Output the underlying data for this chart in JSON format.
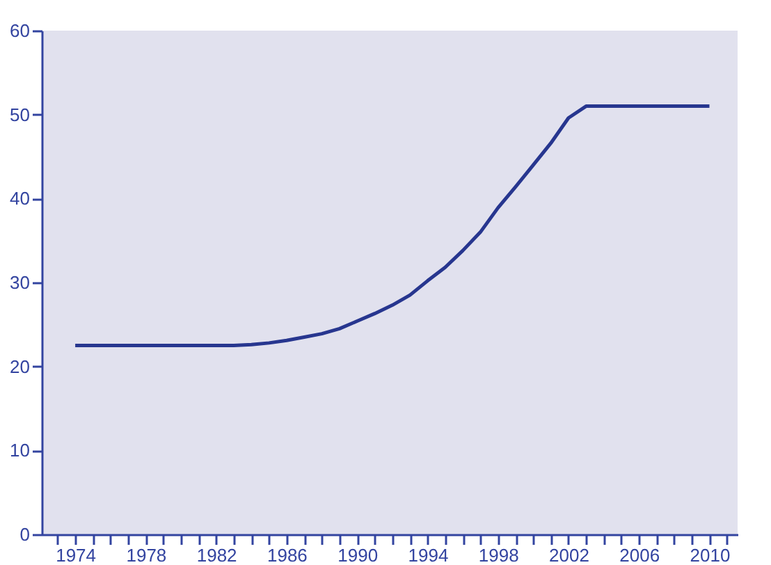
{
  "chart_data": {
    "type": "line",
    "x": [
      1974,
      1975,
      1976,
      1977,
      1978,
      1979,
      1980,
      1981,
      1982,
      1983,
      1984,
      1985,
      1986,
      1987,
      1988,
      1989,
      1990,
      1991,
      1992,
      1993,
      1994,
      1995,
      1996,
      1997,
      1998,
      1999,
      2000,
      2001,
      2002,
      2003,
      2004,
      2005,
      2006,
      2007,
      2008,
      2009,
      2010
    ],
    "series": [
      {
        "color": "#27368f",
        "values": [
          22.5,
          22.5,
          22.5,
          22.5,
          22.5,
          22.5,
          22.5,
          22.5,
          22.5,
          22.5,
          22.6,
          22.8,
          23.1,
          23.5,
          23.9,
          24.5,
          25.4,
          26.3,
          27.3,
          28.5,
          30.2,
          31.8,
          33.8,
          36.0,
          38.9,
          41.4,
          44.0,
          46.6,
          49.6,
          51.0,
          51.0,
          51.0,
          51.0,
          51.0,
          51.0,
          51.0,
          51.0
        ]
      }
    ],
    "xlim": [
      1972.1,
      2011.6
    ],
    "xticks": [
      {
        "value": 1973,
        "label": null
      },
      1974,
      {
        "value": 1975,
        "label": null
      },
      {
        "value": 1976,
        "label": null
      },
      {
        "value": 1977,
        "label": null
      },
      1978,
      {
        "value": 1979,
        "label": null
      },
      {
        "value": 1980,
        "label": null
      },
      {
        "value": 1981,
        "label": null
      },
      1982,
      {
        "value": 1983,
        "label": null
      },
      {
        "value": 1984,
        "label": null
      },
      {
        "value": 1985,
        "label": null
      },
      1986,
      {
        "value": 1987,
        "label": null
      },
      {
        "value": 1988,
        "label": null
      },
      {
        "value": 1989,
        "label": null
      },
      1990,
      {
        "value": 1991,
        "label": null
      },
      {
        "value": 1992,
        "label": null
      },
      {
        "value": 1993,
        "label": null
      },
      1994,
      {
        "value": 1995,
        "label": null
      },
      {
        "value": 1996,
        "label": null
      },
      {
        "value": 1997,
        "label": null
      },
      1998,
      {
        "value": 1999,
        "label": null
      },
      {
        "value": 2000,
        "label": null
      },
      {
        "value": 2001,
        "label": null
      },
      2002,
      {
        "value": 2003,
        "label": null
      },
      {
        "value": 2004,
        "label": null
      },
      {
        "value": 2005,
        "label": null
      },
      2006,
      {
        "value": 2007,
        "label": null
      },
      {
        "value": 2008,
        "label": null
      },
      {
        "value": 2009,
        "label": null
      },
      2010,
      {
        "value": 2011,
        "label": null
      }
    ],
    "ylim": [
      0,
      60
    ],
    "yticks": [
      0,
      10,
      20,
      30,
      40,
      50,
      60
    ],
    "grid": false,
    "marker": "none",
    "line_style": "solid"
  }
}
